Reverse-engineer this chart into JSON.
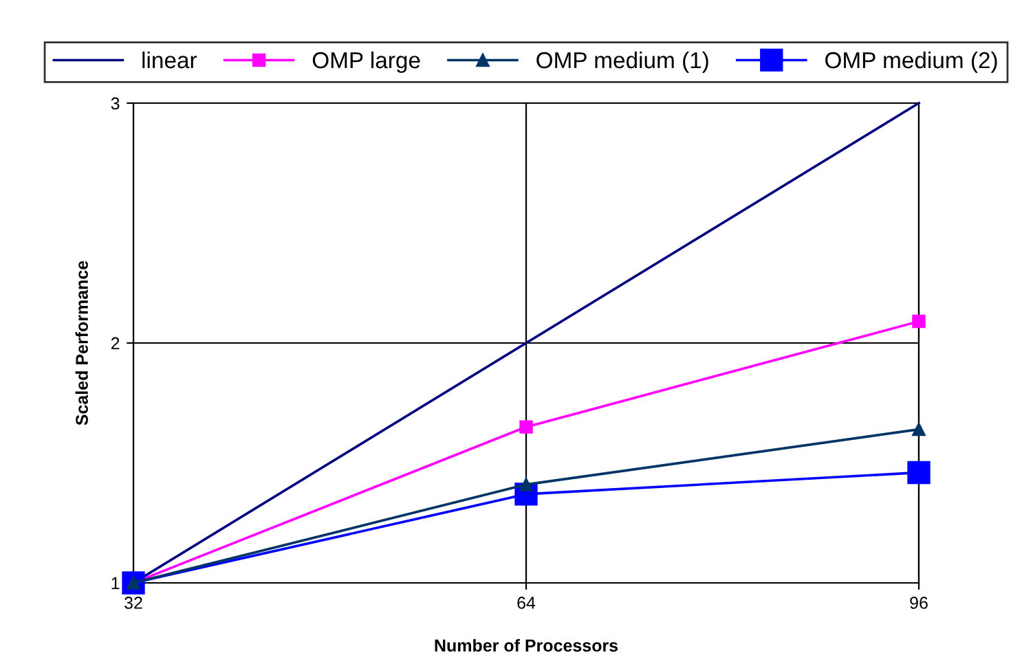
{
  "chart_data": {
    "type": "line",
    "xlabel": "Number of Processors",
    "ylabel": "Scaled Performance",
    "x": [
      32,
      64,
      96
    ],
    "series": [
      {
        "name": "linear",
        "color": "#000080",
        "values": [
          1,
          2,
          3
        ],
        "marker": "none"
      },
      {
        "name": "OMP large",
        "color": "#ff00ff",
        "values": [
          1,
          1.65,
          2.09
        ],
        "marker": "square"
      },
      {
        "name": "OMP medium (1)",
        "color": "#003366",
        "values": [
          1,
          1.41,
          1.64
        ],
        "marker": "triangle"
      },
      {
        "name": "OMP medium (2)",
        "color": "#0000ff",
        "values": [
          1,
          1.37,
          1.46
        ],
        "marker": "square"
      }
    ],
    "xlim": [
      32,
      96
    ],
    "ylim": [
      1,
      3
    ],
    "xticks": [
      32,
      64,
      96
    ],
    "yticks": [
      1,
      2,
      3
    ],
    "grid": true,
    "legend": "top",
    "line_style": "solid"
  }
}
